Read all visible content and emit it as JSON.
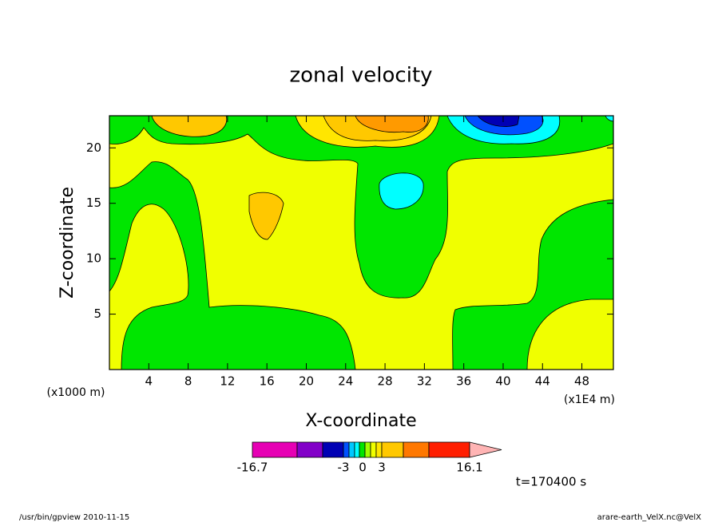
{
  "chart_data": {
    "type": "contour",
    "title": "zonal velocity",
    "xlabel": "X-coordinate",
    "ylabel": "Z-coordinate",
    "xunit": "(x1E4 m)",
    "yunit": "(x1000 m)",
    "xlim": [
      0,
      51.2
    ],
    "xticks": [
      4,
      8,
      12,
      16,
      20,
      24,
      28,
      32,
      36,
      40,
      44,
      48
    ],
    "ylim": [
      0,
      22.9
    ],
    "yticks": [
      5,
      10,
      15,
      20
    ],
    "colorbar": {
      "colors": [
        "#e600b4",
        "#8200c8",
        "#0000b4",
        "#0050ff",
        "#00c8ff",
        "#00ffff",
        "#00e600",
        "#a0ff00",
        "#f0ff00",
        "#ffe600",
        "#ffc800",
        "#ff7800",
        "#ff1e00",
        "#ff7878"
      ],
      "extend_color": "#ffb4b4",
      "labels": [
        -16.7,
        -3,
        0,
        3,
        16.1
      ]
    },
    "time": "t=170400 s",
    "footer_left": "/usr/bin/gpview  2010-11-15",
    "footer_right": "arare-earth_VelX.nc@VelX"
  }
}
